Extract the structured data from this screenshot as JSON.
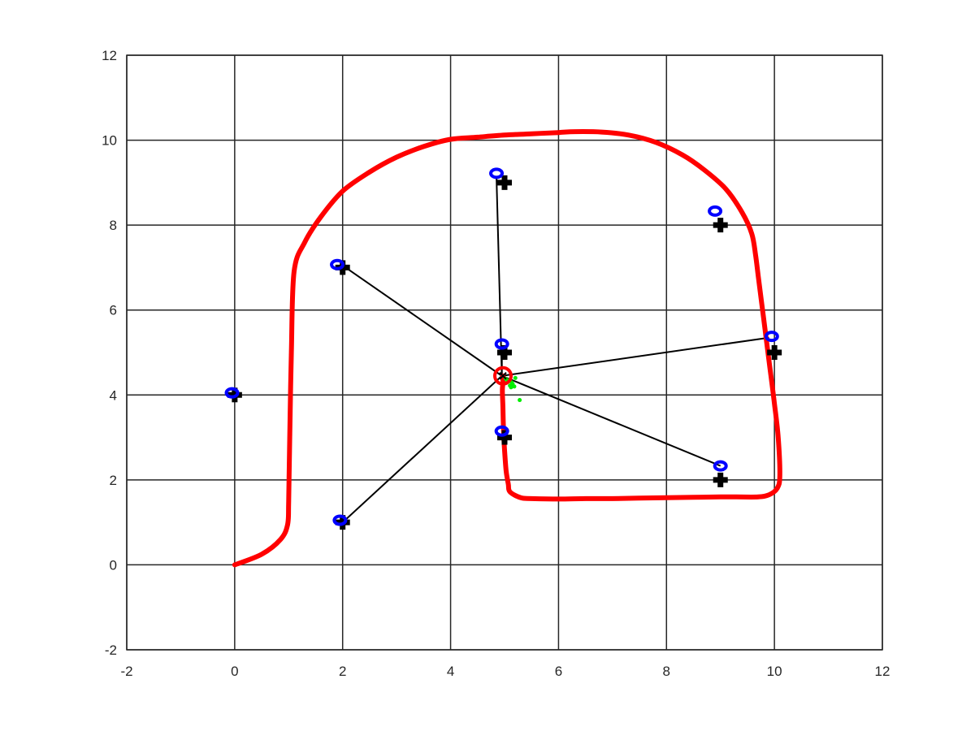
{
  "chart_data": {
    "type": "scatter",
    "title": "",
    "xlabel": "",
    "ylabel": "",
    "xlim": [
      -2,
      12
    ],
    "ylim": [
      -2,
      12
    ],
    "xticks": [
      -2,
      0,
      2,
      4,
      6,
      8,
      10,
      12
    ],
    "yticks": [
      -2,
      0,
      2,
      4,
      6,
      8,
      10,
      12
    ],
    "grid": true,
    "colors": {
      "path": "#ff0000",
      "landmark_true": "#000000",
      "landmark_estimate": "#0000ff",
      "observation_line": "#000000",
      "particles": "#00ee00",
      "robot": "#ff0000",
      "grid": "#262626"
    },
    "series": [
      {
        "type": "line",
        "x": [
          0,
          0.5,
          0.85,
          0.98,
          1.0,
          1.02,
          1.05,
          1.1,
          1.3,
          1.6,
          2.0,
          2.5,
          3.0,
          3.5,
          4.0,
          4.5,
          5.0,
          5.5,
          6.0,
          6.3,
          6.8,
          7.3,
          7.8,
          8.3,
          8.7,
          9.1,
          9.4,
          9.58,
          9.65,
          9.7,
          9.8,
          9.9,
          10.0,
          10.07,
          10.1,
          10.05,
          9.9,
          9.7,
          9.3,
          9.0,
          8.5,
          8.0,
          7.5,
          7.0,
          6.5,
          6.0,
          5.5,
          5.3,
          5.1,
          5.07,
          5.03,
          5.0,
          4.98,
          4.97,
          4.96,
          4.97,
          4.97
        ],
        "y": [
          0,
          0.25,
          0.6,
          0.95,
          1.5,
          3.0,
          5.0,
          6.9,
          7.6,
          8.2,
          8.8,
          9.25,
          9.6,
          9.85,
          10.02,
          10.07,
          10.12,
          10.15,
          10.18,
          10.2,
          10.19,
          10.12,
          9.95,
          9.65,
          9.3,
          8.85,
          8.3,
          7.8,
          7.3,
          6.8,
          5.8,
          4.8,
          3.8,
          3.0,
          2.1,
          1.8,
          1.65,
          1.6,
          1.6,
          1.6,
          1.59,
          1.58,
          1.57,
          1.56,
          1.56,
          1.55,
          1.56,
          1.58,
          1.72,
          1.9,
          2.2,
          2.7,
          3.2,
          3.7,
          4.1,
          4.3,
          4.45
        ]
      },
      {
        "type": "marker",
        "marker": "plus",
        "x": [
          0,
          2,
          2,
          5,
          5,
          5,
          9,
          9,
          10
        ],
        "y": [
          4,
          1,
          7,
          3,
          5,
          9,
          2,
          8,
          5
        ]
      },
      {
        "type": "marker",
        "marker": "ellipse",
        "x": [
          -0.05,
          1.95,
          1.9,
          4.95,
          4.95,
          4.85,
          9.0,
          8.9,
          9.95
        ],
        "y": [
          4.05,
          1.05,
          7.07,
          3.15,
          5.2,
          9.22,
          2.33,
          8.33,
          5.38
        ]
      },
      {
        "type": "observation_lines",
        "from": [
          4.95,
          4.45
        ],
        "to_x": [
          2,
          4.85,
          4.95,
          9.9,
          9.0,
          2.0
        ],
        "to_y": [
          1,
          9.15,
          5.1,
          5.35,
          2.33,
          7.05
        ]
      },
      {
        "type": "particles",
        "x": [
          5.05,
          5.1,
          5.12,
          5.15,
          5.08,
          5.2,
          5.28,
          5.02,
          5.18,
          5.13
        ],
        "y": [
          4.3,
          4.22,
          4.18,
          4.26,
          4.35,
          4.4,
          3.88,
          4.38,
          4.2,
          4.3
        ]
      },
      {
        "type": "robot",
        "x": 4.97,
        "y": 4.45
      }
    ]
  }
}
